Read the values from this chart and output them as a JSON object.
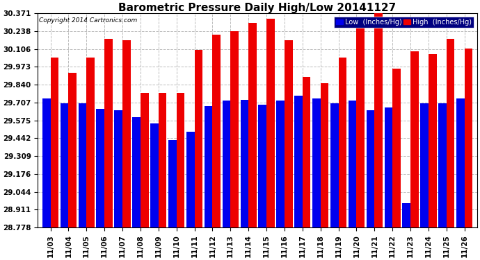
{
  "title": "Barometric Pressure Daily High/Low 20141127",
  "copyright": "Copyright 2014 Cartronics.com",
  "legend_low": "Low  (Inches/Hg)",
  "legend_high": "High  (Inches/Hg)",
  "categories": [
    "11/03",
    "11/04",
    "11/05",
    "11/06",
    "11/07",
    "11/08",
    "11/09",
    "11/10",
    "11/11",
    "11/12",
    "11/13",
    "11/14",
    "11/15",
    "11/16",
    "11/17",
    "11/18",
    "11/19",
    "11/20",
    "11/21",
    "11/22",
    "11/23",
    "11/24",
    "11/25",
    "11/26"
  ],
  "low_values": [
    29.74,
    29.7,
    29.7,
    29.66,
    29.65,
    29.6,
    29.55,
    29.43,
    29.49,
    29.68,
    29.72,
    29.73,
    29.69,
    29.72,
    29.76,
    29.74,
    29.7,
    29.72,
    29.65,
    29.67,
    28.96,
    29.7,
    29.7,
    29.74
  ],
  "high_values": [
    30.04,
    29.93,
    30.04,
    30.18,
    30.17,
    29.78,
    29.78,
    29.78,
    30.1,
    30.21,
    30.24,
    30.3,
    30.33,
    30.17,
    29.9,
    29.85,
    30.04,
    30.27,
    30.37,
    29.96,
    30.09,
    30.07,
    30.18,
    30.11
  ],
  "ylim_min": 28.778,
  "ylim_max": 30.371,
  "yticks": [
    28.778,
    28.911,
    29.044,
    29.176,
    29.309,
    29.442,
    29.575,
    29.707,
    29.84,
    29.973,
    30.106,
    30.238,
    30.371
  ],
  "low_color": "#0000ee",
  "high_color": "#ee0000",
  "bg_color": "#ffffff",
  "grid_color": "#bbbbbb",
  "title_fontsize": 11,
  "tick_fontsize": 7.5,
  "bar_width": 0.45,
  "legend_bg": "#000080",
  "figwidth": 6.9,
  "figheight": 3.75,
  "dpi": 100
}
